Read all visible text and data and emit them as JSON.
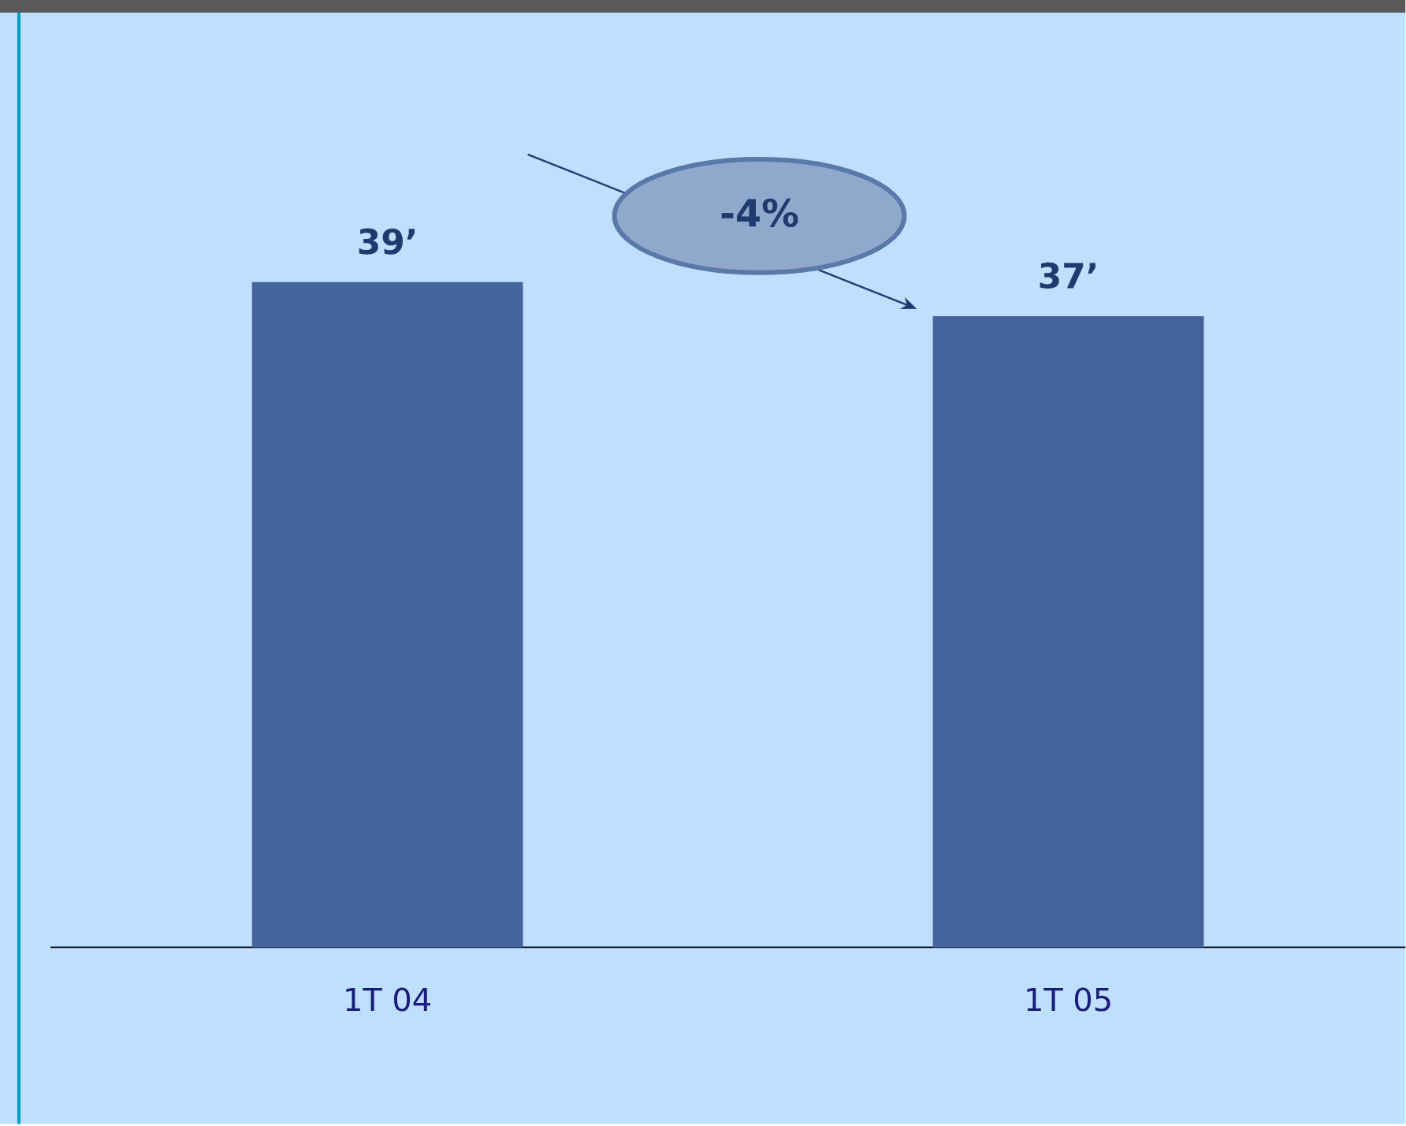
{
  "chart_data": {
    "type": "bar",
    "categories": [
      "1T 04",
      "1T 05"
    ],
    "values": [
      39,
      37
    ],
    "value_labels": [
      "39’",
      "37’"
    ],
    "color": "#44649b",
    "annotations": [
      "-4%"
    ]
  }
}
